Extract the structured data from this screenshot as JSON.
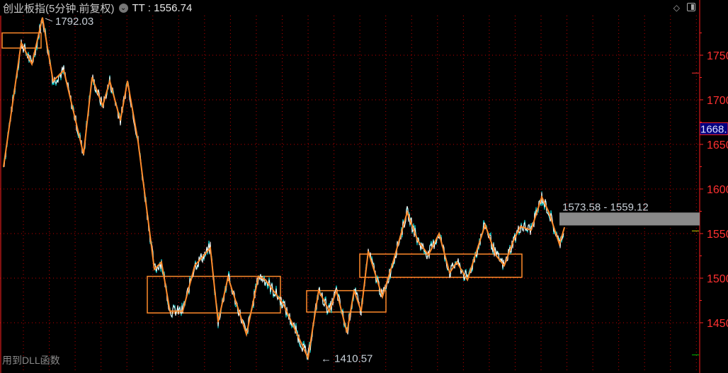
{
  "header": {
    "title": "创业板指(5分钟.前复权)",
    "indicator_icon": "chevron-down-circle-icon",
    "indicator": "TT : 1556.74"
  },
  "footer": {
    "text": "用到DLL函数"
  },
  "tools": {
    "icons": [
      "diamond-icon",
      "panel-toggle-icon"
    ]
  },
  "colors": {
    "background": "#000000",
    "grid": "#c00000",
    "axis": "#ff2020",
    "zigzag": "#ff8a2a",
    "price_line": "#ffffff",
    "price_accent": "#00e0e0",
    "box": "#ff8a2a",
    "band": "#8a8a8a",
    "current_label_bg": "#000080"
  },
  "chart_data": {
    "type": "line",
    "y_ticks": [
      1450,
      1500,
      1550,
      1600,
      1650,
      1700,
      1750
    ],
    "ylim": [
      1405,
      1805
    ],
    "xlim": [
      0,
      985
    ],
    "grid": true,
    "current_price_label": "1668.",
    "current_price_value": 1668,
    "zigzag": {
      "x": [
        2,
        27,
        42,
        57,
        72,
        87,
        115,
        127,
        142,
        152,
        167,
        177,
        192,
        215,
        225,
        237,
        255,
        272,
        294,
        305,
        319,
        345,
        362,
        372,
        397,
        432,
        447,
        462,
        472,
        487,
        497,
        507,
        517,
        537,
        552,
        572,
        587,
        602,
        617,
        632,
        642,
        657,
        682,
        697,
        709,
        722,
        732,
        747,
        762,
        772,
        787,
        794
      ],
      "y": [
        1625,
        1764,
        1740,
        1792.03,
        1721,
        1733,
        1639,
        1725,
        1693,
        1721,
        1677,
        1721,
        1653,
        1510,
        1518,
        1463,
        1463,
        1514,
        1534,
        1451,
        1501,
        1437,
        1502,
        1498,
        1471,
        1410.57,
        1486,
        1463,
        1486,
        1439,
        1486,
        1463,
        1530,
        1479,
        1518,
        1574,
        1542,
        1526,
        1550,
        1506,
        1518,
        1498,
        1560,
        1526,
        1514,
        1542,
        1558,
        1554,
        1591,
        1574,
        1538,
        1556.74
      ]
    },
    "annotations": [
      {
        "text": "1792.03",
        "x": 57,
        "y": 1792.03
      },
      {
        "text": "1410.57",
        "x": 432,
        "y": 1410.57
      },
      {
        "text": "1573.58 - 1559.12",
        "x": 787,
        "y": 1573.58
      }
    ],
    "band": {
      "high": 1573.58,
      "low": 1559.12,
      "x_start": 787
    },
    "boxes": [
      {
        "x0": 0,
        "x1": 55,
        "high": 1775,
        "low": 1758
      },
      {
        "x0": 205,
        "x1": 393,
        "high": 1502,
        "low": 1461
      },
      {
        "x0": 430,
        "x1": 542,
        "high": 1486,
        "low": 1462
      },
      {
        "x0": 505,
        "x1": 734,
        "high": 1527,
        "low": 1501
      }
    ],
    "axis_markers": [
      {
        "value": 1553,
        "color": "#d0d000"
      },
      {
        "value": 1414,
        "color": "#00c000"
      },
      {
        "value": 1730,
        "color": "#ff3030"
      }
    ]
  }
}
